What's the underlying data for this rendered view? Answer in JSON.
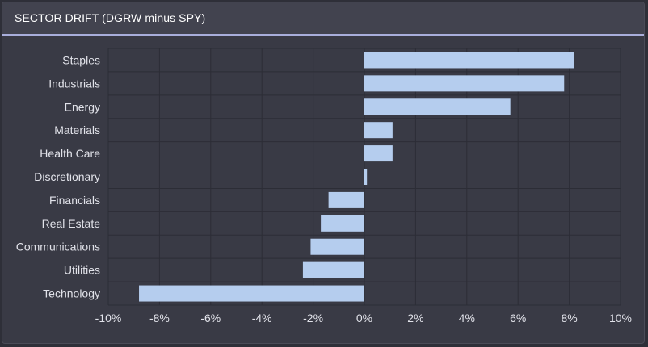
{
  "panel": {
    "title": "SECTOR DRIFT (DGRW minus SPY)"
  },
  "colors": {
    "bar": "#b5cdee",
    "grid": "#2c2d36",
    "plot_bg": "#393a45"
  },
  "chart_data": {
    "type": "bar",
    "orientation": "horizontal",
    "title": "SECTOR DRIFT (DGRW minus SPY)",
    "categories": [
      "Staples",
      "Industrials",
      "Energy",
      "Materials",
      "Health Care",
      "Discretionary",
      "Financials",
      "Real Estate",
      "Communications",
      "Utilities",
      "Technology"
    ],
    "values": [
      8.2,
      7.8,
      5.7,
      1.1,
      1.1,
      0.1,
      -1.4,
      -1.7,
      -2.1,
      -2.4,
      -8.8
    ],
    "xlim": [
      -10,
      10
    ],
    "xticks": [
      -10,
      -8,
      -6,
      -4,
      -2,
      0,
      2,
      4,
      6,
      8,
      10
    ],
    "xtick_labels": [
      "-10%",
      "-8%",
      "-6%",
      "-4%",
      "-2%",
      "0%",
      "2%",
      "4%",
      "6%",
      "8%",
      "10%"
    ],
    "xlabel": "",
    "ylabel": "",
    "grid": true,
    "legend": false
  }
}
